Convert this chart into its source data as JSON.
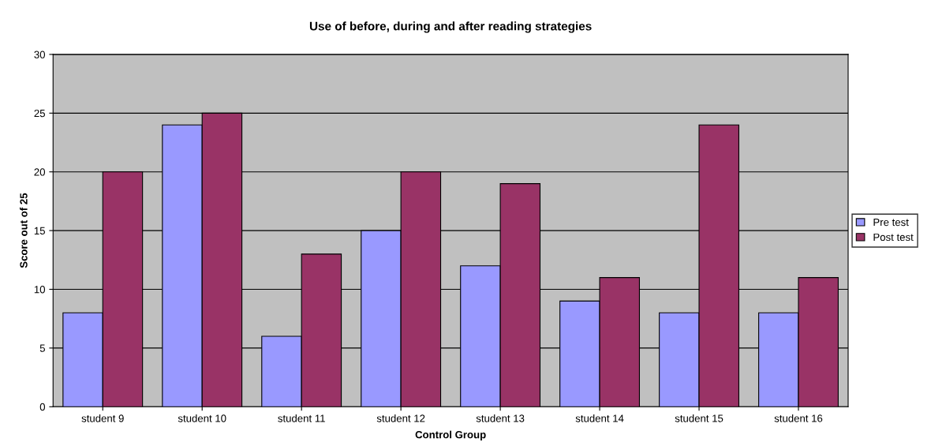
{
  "chart_data": {
    "type": "bar",
    "title": "Use of before, during and after reading strategies",
    "xlabel": "Control Group",
    "ylabel": "Score out of 25",
    "categories": [
      "student 9",
      "student 10",
      "student 11",
      "student 12",
      "student 13",
      "student 14",
      "student 15",
      "student 16"
    ],
    "series": [
      {
        "name": "Pre test",
        "color": "#9999ff",
        "values": [
          8,
          24,
          6,
          15,
          12,
          9,
          8,
          8
        ]
      },
      {
        "name": "Post test",
        "color": "#993366",
        "values": [
          20,
          25,
          13,
          20,
          19,
          11,
          24,
          11
        ]
      }
    ],
    "ylim": [
      0,
      30
    ],
    "yticks": [
      0,
      5,
      10,
      15,
      20,
      25,
      30
    ],
    "grid": "y",
    "legend": "right"
  }
}
